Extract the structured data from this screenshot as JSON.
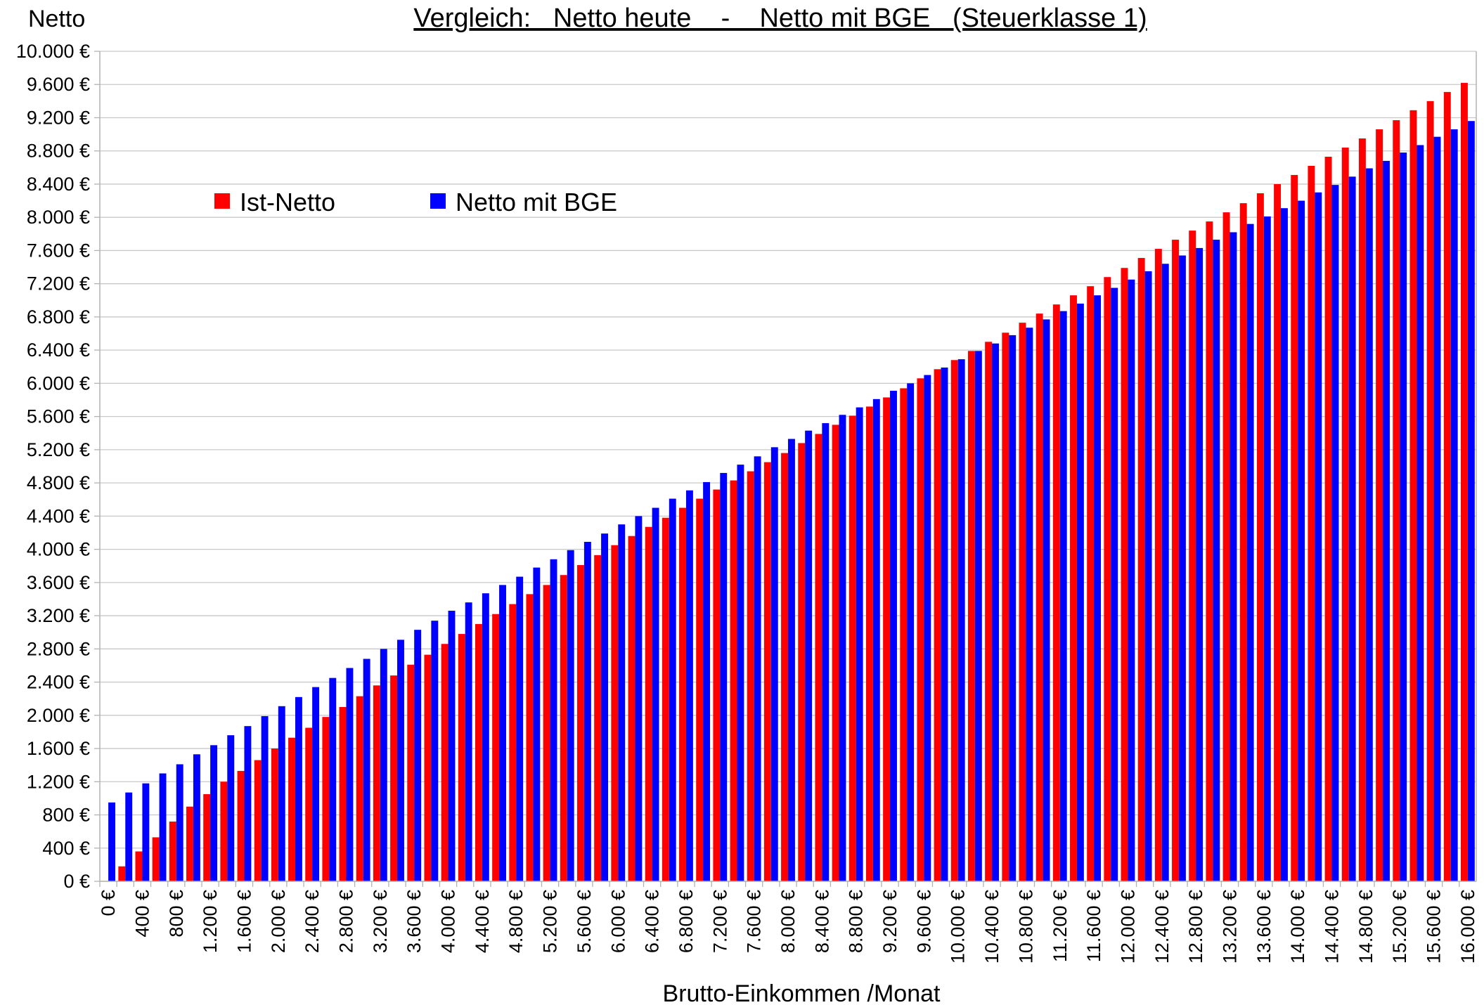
{
  "chart_data": {
    "type": "grouped_bar",
    "title": "Vergleich:   Netto heute    -    Netto mit BGE   (Steuerklasse 1)",
    "y_label": "Netto",
    "x_label": "Brutto-Einkommen /Monat",
    "legend": "upper left",
    "grid": true,
    "categories": [
      "0 €",
      null,
      "400 €",
      null,
      "800 €",
      null,
      "1.200 €",
      null,
      "1.600 €",
      null,
      "2.000 €",
      null,
      "2.400 €",
      null,
      "2.800 €",
      null,
      "3.200 €",
      null,
      "3.600 €",
      null,
      "4.000 €",
      null,
      "4.400 €",
      null,
      "4.800 €",
      null,
      "5.200 €",
      null,
      "5.600 €",
      null,
      "6.000 €",
      null,
      "6.400 €",
      null,
      "6.800 €",
      null,
      "7.200 €",
      null,
      "7.600 €",
      null,
      "8.000 €",
      null,
      "8.400 €",
      null,
      "8.800 €",
      null,
      "9.200 €",
      null,
      "9.600 €",
      null,
      "10.000 €",
      null,
      "10.400 €",
      null,
      "10.800 €",
      null,
      "11.200 €",
      null,
      "11.600 €",
      null,
      "12.000 €",
      null,
      "12.400 €",
      null,
      "12.800 €",
      null,
      "13.200 €",
      null,
      "13.600 €",
      null,
      "14.000 €",
      null,
      "14.400 €",
      null,
      "14.800 €",
      null,
      "15.200 €",
      null,
      "15.600 €",
      null,
      "16.000 €"
    ],
    "series": [
      {
        "name": "Ist-Netto",
        "color": "#ff0000",
        "values": [
          0,
          180,
          360,
          530,
          720,
          900,
          1050,
          1200,
          1330,
          1460,
          1600,
          1730,
          1850,
          1980,
          2100,
          2230,
          2360,
          2480,
          2610,
          2730,
          2860,
          2980,
          3100,
          3220,
          3340,
          3460,
          3570,
          3690,
          3810,
          3930,
          4050,
          4160,
          4270,
          4380,
          4500,
          4610,
          4720,
          4830,
          4940,
          5050,
          5160,
          5280,
          5390,
          5500,
          5610,
          5720,
          5830,
          5940,
          6060,
          6170,
          6280,
          6390,
          6500,
          6610,
          6730,
          6840,
          6950,
          7060,
          7170,
          7280,
          7390,
          7510,
          7620,
          7730,
          7840,
          7950,
          8060,
          8170,
          8290,
          8400,
          8510,
          8620,
          8730,
          8840,
          8950,
          9060,
          9170,
          9290,
          9400,
          9510,
          9620
        ]
      },
      {
        "name": "Netto mit BGE",
        "color": "#0000ff",
        "values": [
          950,
          1070,
          1180,
          1300,
          1410,
          1530,
          1640,
          1760,
          1870,
          1990,
          2110,
          2220,
          2340,
          2450,
          2570,
          2680,
          2800,
          2910,
          3030,
          3140,
          3260,
          3360,
          3470,
          3570,
          3670,
          3780,
          3880,
          3990,
          4090,
          4190,
          4300,
          4400,
          4500,
          4610,
          4710,
          4810,
          4920,
          5020,
          5120,
          5230,
          5330,
          5430,
          5520,
          5620,
          5710,
          5810,
          5910,
          6000,
          6100,
          6190,
          6290,
          6390,
          6480,
          6580,
          6670,
          6770,
          6870,
          6960,
          7060,
          7150,
          7250,
          7350,
          7440,
          7540,
          7630,
          7730,
          7820,
          7920,
          8010,
          8110,
          8200,
          8300,
          8390,
          8490,
          8590,
          8680,
          8780,
          8870,
          8970,
          9060,
          9160
        ]
      }
    ],
    "ylim": [
      0,
      10000
    ],
    "yticks": [
      {
        "value": 0,
        "label": "0 €"
      },
      {
        "value": 400,
        "label": "400 €"
      },
      {
        "value": 800,
        "label": "800 €"
      },
      {
        "value": 1200,
        "label": "1.200 €"
      },
      {
        "value": 1600,
        "label": "1.600 €"
      },
      {
        "value": 2000,
        "label": "2.000 €"
      },
      {
        "value": 2400,
        "label": "2.400 €"
      },
      {
        "value": 2800,
        "label": "2.800 €"
      },
      {
        "value": 3200,
        "label": "3.200 €"
      },
      {
        "value": 3600,
        "label": "3.600 €"
      },
      {
        "value": 4000,
        "label": "4.000 €"
      },
      {
        "value": 4400,
        "label": "4.400 €"
      },
      {
        "value": 4800,
        "label": "4.800 €"
      },
      {
        "value": 5200,
        "label": "5.200 €"
      },
      {
        "value": 5600,
        "label": "5.600 €"
      },
      {
        "value": 6000,
        "label": "6.000 €"
      },
      {
        "value": 6400,
        "label": "6.400 €"
      },
      {
        "value": 6800,
        "label": "6.800 €"
      },
      {
        "value": 7200,
        "label": "7.200 €"
      },
      {
        "value": 7600,
        "label": "7.600 €"
      },
      {
        "value": 8000,
        "label": "8.000 €"
      },
      {
        "value": 8400,
        "label": "8.400 €"
      },
      {
        "value": 8800,
        "label": "8.800 €"
      },
      {
        "value": 9200,
        "label": "9.200 €"
      },
      {
        "value": 9600,
        "label": "9.600 €"
      },
      {
        "value": 10000,
        "label": "10.000 €"
      }
    ]
  }
}
